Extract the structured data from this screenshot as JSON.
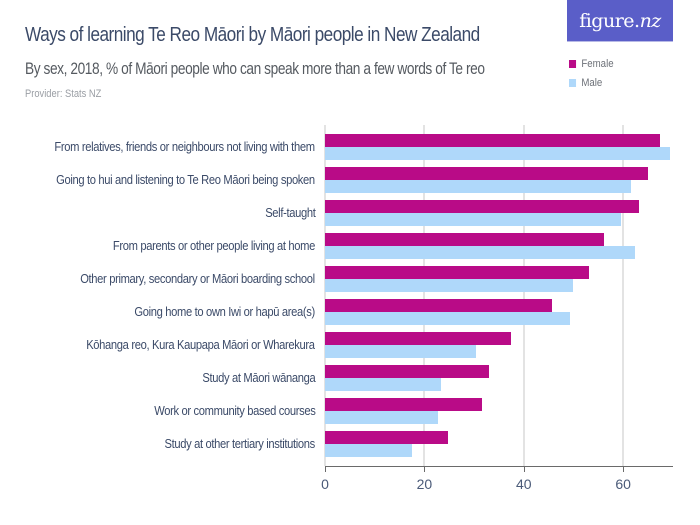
{
  "header": {
    "title": "Ways of learning Te Reo Māori by Māori people in New Zealand",
    "subtitle": "By sex, 2018, % of Māori people who can speak more than a few words of Te reo",
    "provider": "Provider: Stats NZ"
  },
  "logo": {
    "main": "figure.",
    "accent": "nz"
  },
  "legend": [
    {
      "label": "Female",
      "color": "#b90b87"
    },
    {
      "label": "Male",
      "color": "#afd8fa"
    }
  ],
  "axis": {
    "ticks": [
      "0",
      "20",
      "40",
      "60"
    ]
  },
  "chart_data": {
    "type": "bar",
    "orientation": "horizontal",
    "title": "Ways of learning Te Reo Māori by Māori people in New Zealand",
    "subtitle": "By sex, 2018, % of Māori people who can speak more than a few words of Te reo",
    "xlabel": "",
    "ylabel": "",
    "xlim": [
      0,
      70
    ],
    "xticks": [
      0,
      20,
      40,
      60
    ],
    "grid": true,
    "legend_position": "top-right",
    "categories": [
      "From relatives, friends or neighbours not living with them",
      "Going to hui and listening to Te Reo Māori being spoken",
      "Self-taught",
      "From parents or other people living at home",
      "Other primary, secondary or Māori boarding school",
      "Going home to own Iwi or hapū area(s)",
      "Kōhanga reo, Kura Kaupapa Māori or Wharekura",
      "Study at Māori wānanga",
      "Work or community based courses",
      "Study at other tertiary institutions"
    ],
    "series": [
      {
        "name": "Female",
        "color": "#b90b87",
        "values": [
          67.4,
          64.9,
          63.2,
          56.1,
          53.2,
          45.7,
          37.4,
          33.0,
          31.5,
          24.7
        ]
      },
      {
        "name": "Male",
        "color": "#afd8fa",
        "values": [
          69.5,
          61.6,
          59.5,
          62.3,
          49.8,
          49.3,
          30.4,
          23.3,
          22.8,
          17.6
        ]
      }
    ]
  }
}
